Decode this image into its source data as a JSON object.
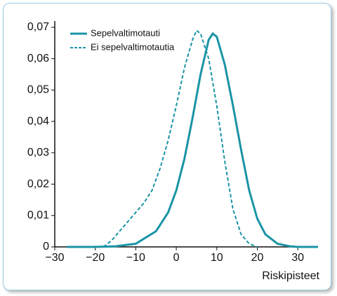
{
  "chart_data": {
    "type": "line",
    "x_label": "Riskipisteet",
    "xlim": [
      -30,
      35
    ],
    "ylim": [
      0,
      0.072
    ],
    "xticks": [
      {
        "value": -30,
        "label": "−30"
      },
      {
        "value": -20,
        "label": "−20"
      },
      {
        "value": -10,
        "label": "−10"
      },
      0,
      10,
      20,
      30
    ],
    "yticks": [
      0,
      {
        "value": 0.01,
        "label": "0,01"
      },
      {
        "value": 0.02,
        "label": "0,02"
      },
      {
        "value": 0.03,
        "label": "0,03"
      },
      {
        "value": 0.04,
        "label": "0,04"
      },
      {
        "value": 0.05,
        "label": "0,05"
      },
      {
        "value": 0.06,
        "label": "0,06"
      },
      {
        "value": 0.07,
        "label": "0,07"
      }
    ],
    "legend": "top-left",
    "series": [
      {
        "name": "Sepelvaltimotauti",
        "color": "#1a94a6",
        "dash": false,
        "x": [
          -27,
          -20,
          -15,
          -10,
          -5,
          -2,
          0,
          2,
          4,
          6,
          8,
          9,
          10,
          12,
          14,
          16,
          18,
          20,
          22,
          25,
          28,
          30,
          35
        ],
        "values": [
          0,
          0,
          0.0002,
          0.001,
          0.005,
          0.011,
          0.018,
          0.028,
          0.041,
          0.055,
          0.066,
          0.068,
          0.067,
          0.058,
          0.045,
          0.031,
          0.018,
          0.009,
          0.004,
          0.001,
          0.0002,
          0,
          0
        ]
      },
      {
        "name": "Ei sepelvaltimotautia",
        "color": "#1a94a6",
        "dash": true,
        "x": [
          -18,
          -16,
          -14,
          -12,
          -10,
          -8,
          -6,
          -4,
          -2,
          0,
          2,
          4,
          5,
          6,
          8,
          10,
          12,
          14,
          16,
          18,
          20
        ],
        "values": [
          0,
          0.002,
          0.005,
          0.008,
          0.011,
          0.014,
          0.018,
          0.025,
          0.034,
          0.045,
          0.057,
          0.066,
          0.069,
          0.068,
          0.06,
          0.045,
          0.027,
          0.012,
          0.004,
          0.001,
          0
        ]
      }
    ]
  }
}
